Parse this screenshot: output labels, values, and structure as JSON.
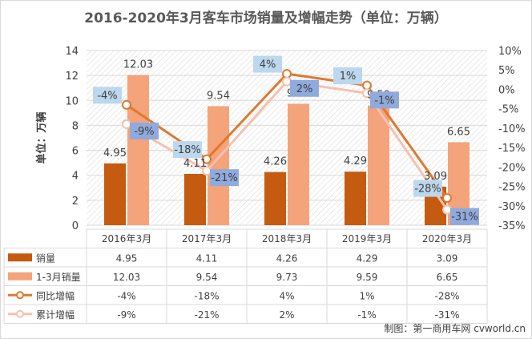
{
  "title": "2016-2020年3月客车市场销量及增幅走势（单位：万辆）",
  "credit": "制图：第一商用车网 cvworld.cn",
  "chart_data": {
    "type": "bar+line",
    "categories": [
      "2016年3月",
      "2017年3月",
      "2018年3月",
      "2019年3月",
      "2020年3月"
    ],
    "ylabel": "单位：万辆",
    "y_left": {
      "min": 0,
      "max": 14,
      "step": 2,
      "ticks": [
        "0",
        "2",
        "4",
        "6",
        "8",
        "10",
        "12",
        "14"
      ]
    },
    "y_right": {
      "min": -35,
      "max": 10,
      "step": 5,
      "ticks": [
        "10%",
        "5%",
        "0%",
        "-5%",
        "-10%",
        "-15%",
        "-20%",
        "-25%",
        "-30%",
        "-35%"
      ]
    },
    "grid": true,
    "bar_series": [
      {
        "name": "销量",
        "values": [
          4.95,
          4.11,
          4.26,
          4.29,
          3.09
        ],
        "labels": [
          "4.95",
          "4.11",
          "4.26",
          "4.29",
          "3.09"
        ],
        "color": "#c55a11"
      },
      {
        "name": "1-3月销量",
        "values": [
          12.03,
          9.54,
          9.73,
          9.59,
          6.65
        ],
        "labels": [
          "12.03",
          "9.54",
          "9.73",
          "9.59",
          "6.65"
        ],
        "color": "#f4a37a"
      }
    ],
    "line_series": [
      {
        "name": "同比增幅",
        "values": [
          -4,
          -18,
          4,
          1,
          -28
        ],
        "labels": [
          "-4%",
          "-18%",
          "4%",
          "1%",
          "-28%"
        ],
        "color": "#e0782f",
        "label_bg": "#bdd7ee"
      },
      {
        "name": "累计增幅",
        "values": [
          -9,
          -21,
          2,
          -1,
          -31
        ],
        "labels": [
          "-9%",
          "-21%",
          "2%",
          "-1%",
          "-31%"
        ],
        "color": "#f5c1ad",
        "label_bg": "#8faadc"
      }
    ]
  }
}
